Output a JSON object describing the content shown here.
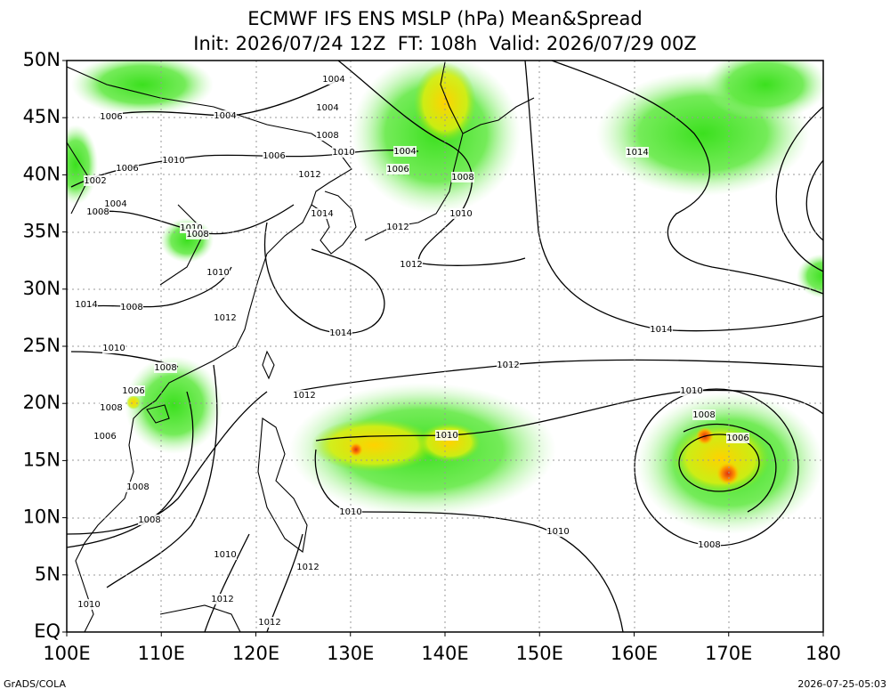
{
  "header": {
    "title": "ECMWF IFS ENS MSLP (hPa) Mean&Spread",
    "subtitle": "Init: 2026/07/24 12Z  FT: 108h  Valid: 2026/07/29 00Z"
  },
  "axes": {
    "x_labels": [
      "100E",
      "110E",
      "120E",
      "130E",
      "140E",
      "150E",
      "160E",
      "170E",
      "180"
    ],
    "y_labels": [
      "EQ",
      "5N",
      "10N",
      "15N",
      "20N",
      "25N",
      "30N",
      "35N",
      "40N",
      "45N",
      "50N"
    ]
  },
  "contour_labels": [
    "1004",
    "1006",
    "1004",
    "1004",
    "1008",
    "1006",
    "1010",
    "1010",
    "1004",
    "1006",
    "1006",
    "1002",
    "1012",
    "1008",
    "1004",
    "1014",
    "1008",
    "1010",
    "1010",
    "1008",
    "1012",
    "1012",
    "1010",
    "1014",
    "1008",
    "1012",
    "1014",
    "1010",
    "1008",
    "1012",
    "1014",
    "1014",
    "1006",
    "1008",
    "1012",
    "1010",
    "1008",
    "1006",
    "1010",
    "1006",
    "1008",
    "1008",
    "1010",
    "1010",
    "1008",
    "1010",
    "1012",
    "1012",
    "1010",
    "1012"
  ],
  "footer": {
    "credit": "GrADS/COLA",
    "timestamp": "2026-07-25-05:03"
  }
}
